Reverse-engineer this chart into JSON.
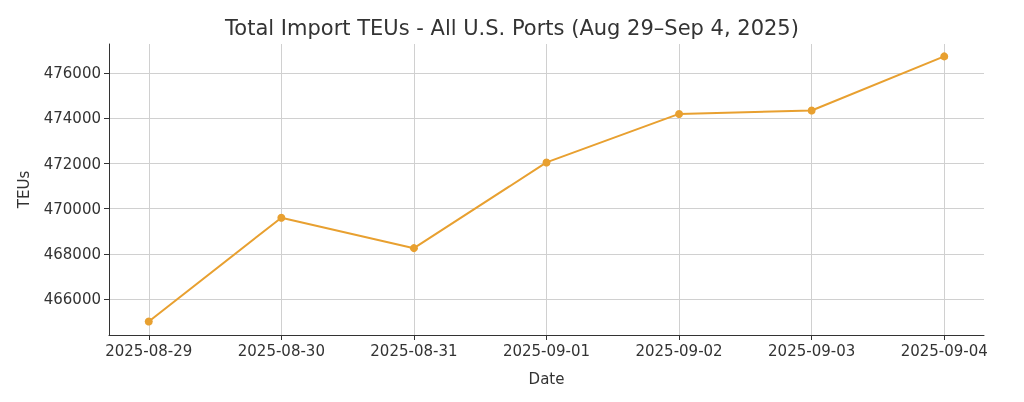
{
  "chart_data": {
    "type": "line",
    "title": "Total Import TEUs - All U.S. Ports (Aug 29–Sep 4, 2025)",
    "xlabel": "Date",
    "ylabel": "TEUs",
    "x": [
      "2025-08-29",
      "2025-08-30",
      "2025-08-31",
      "2025-09-01",
      "2025-09-02",
      "2025-09-03",
      "2025-09-04"
    ],
    "series": [
      {
        "color": "#e8a030",
        "values": [
          465000,
          469600,
          468250,
          472050,
          474200,
          474350,
          476750
        ]
      }
    ],
    "xlim": [
      "2025-08-28T16:48",
      "2025-09-04T07:12"
    ],
    "xticks": [
      "2025-08-29",
      "2025-08-30",
      "2025-08-31",
      "2025-09-01",
      "2025-09-02",
      "2025-09-03",
      "2025-09-04"
    ],
    "ylim": [
      464400,
      477300
    ],
    "yticks": [
      466000,
      468000,
      470000,
      472000,
      474000,
      476000
    ],
    "grid": true,
    "marker": "circle",
    "line_style": "solid"
  }
}
